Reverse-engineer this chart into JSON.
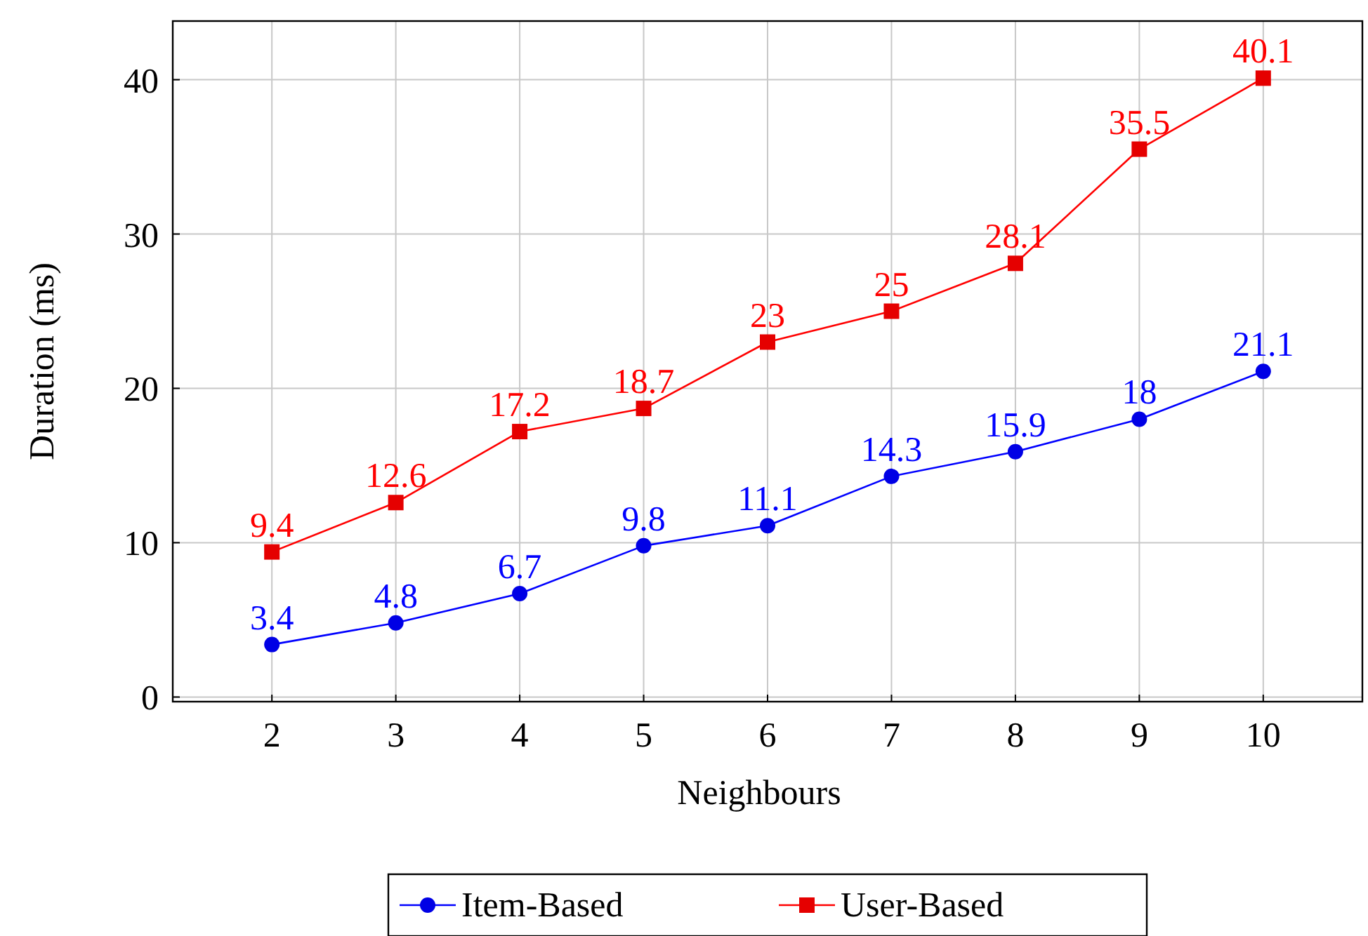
{
  "chart_data": {
    "type": "line",
    "xlabel": "Neighbours",
    "ylabel": "Duration (ms)",
    "x": [
      2,
      3,
      4,
      5,
      6,
      7,
      8,
      9,
      10
    ],
    "xlim": [
      1.2,
      10.8
    ],
    "xticks": [
      2,
      3,
      4,
      5,
      6,
      7,
      8,
      9,
      10
    ],
    "ylim": [
      -0.3,
      43.8
    ],
    "yticks": [
      0,
      10,
      20,
      30,
      40
    ],
    "grid": true,
    "legend": "bottom",
    "data_labels": true,
    "series": [
      {
        "name": "Item-Based",
        "color": "#0000ff",
        "marker": "circle",
        "values": [
          3.4,
          4.8,
          6.7,
          9.8,
          11.1,
          14.3,
          15.9,
          18,
          21.1
        ]
      },
      {
        "name": "User-Based",
        "color": "#ff0000",
        "marker": "square",
        "values": [
          9.4,
          12.6,
          17.2,
          18.7,
          23,
          25,
          28.1,
          35.5,
          40.1
        ]
      }
    ]
  }
}
